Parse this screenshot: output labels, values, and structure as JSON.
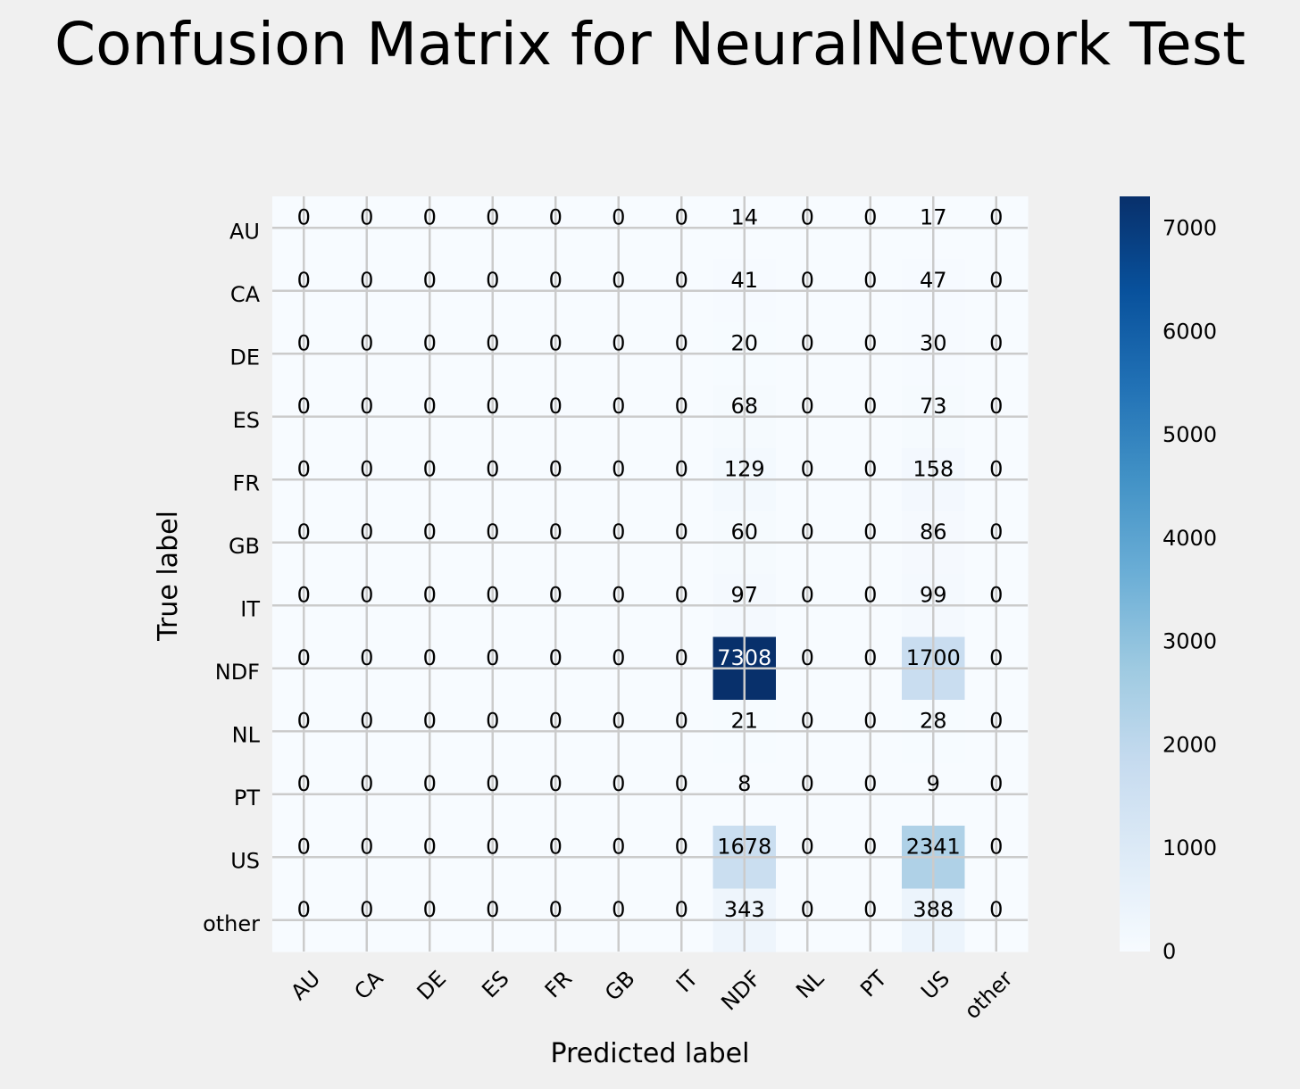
{
  "chart_data": {
    "type": "heatmap",
    "title": "Confusion Matrix for NeuralNetwork Test",
    "xlabel": "Predicted label",
    "ylabel": "True label",
    "x_categories": [
      "AU",
      "CA",
      "DE",
      "ES",
      "FR",
      "GB",
      "IT",
      "NDF",
      "NL",
      "PT",
      "US",
      "other"
    ],
    "y_categories": [
      "AU",
      "CA",
      "DE",
      "ES",
      "FR",
      "GB",
      "IT",
      "NDF",
      "NL",
      "PT",
      "US",
      "other"
    ],
    "values": [
      [
        0,
        0,
        0,
        0,
        0,
        0,
        0,
        14,
        0,
        0,
        17,
        0
      ],
      [
        0,
        0,
        0,
        0,
        0,
        0,
        0,
        41,
        0,
        0,
        47,
        0
      ],
      [
        0,
        0,
        0,
        0,
        0,
        0,
        0,
        20,
        0,
        0,
        30,
        0
      ],
      [
        0,
        0,
        0,
        0,
        0,
        0,
        0,
        68,
        0,
        0,
        73,
        0
      ],
      [
        0,
        0,
        0,
        0,
        0,
        0,
        0,
        129,
        0,
        0,
        158,
        0
      ],
      [
        0,
        0,
        0,
        0,
        0,
        0,
        0,
        60,
        0,
        0,
        86,
        0
      ],
      [
        0,
        0,
        0,
        0,
        0,
        0,
        0,
        97,
        0,
        0,
        99,
        0
      ],
      [
        0,
        0,
        0,
        0,
        0,
        0,
        0,
        7308,
        0,
        0,
        1700,
        0
      ],
      [
        0,
        0,
        0,
        0,
        0,
        0,
        0,
        21,
        0,
        0,
        28,
        0
      ],
      [
        0,
        0,
        0,
        0,
        0,
        0,
        0,
        8,
        0,
        0,
        9,
        0
      ],
      [
        0,
        0,
        0,
        0,
        0,
        0,
        0,
        1678,
        0,
        0,
        2341,
        0
      ],
      [
        0,
        0,
        0,
        0,
        0,
        0,
        0,
        343,
        0,
        0,
        388,
        0
      ]
    ],
    "colormap": "Blues",
    "color_range": [
      0,
      7308
    ],
    "colorbar_ticks": [
      0,
      1000,
      2000,
      3000,
      4000,
      5000,
      6000,
      7000
    ],
    "colors": {
      "background": "#f0f0f0",
      "grid": "#cbcbcb",
      "cmap_low": "#f7fbff",
      "cmap_high": "#08306b",
      "text_dark": "#000000",
      "text_light": "#ffffff"
    }
  }
}
